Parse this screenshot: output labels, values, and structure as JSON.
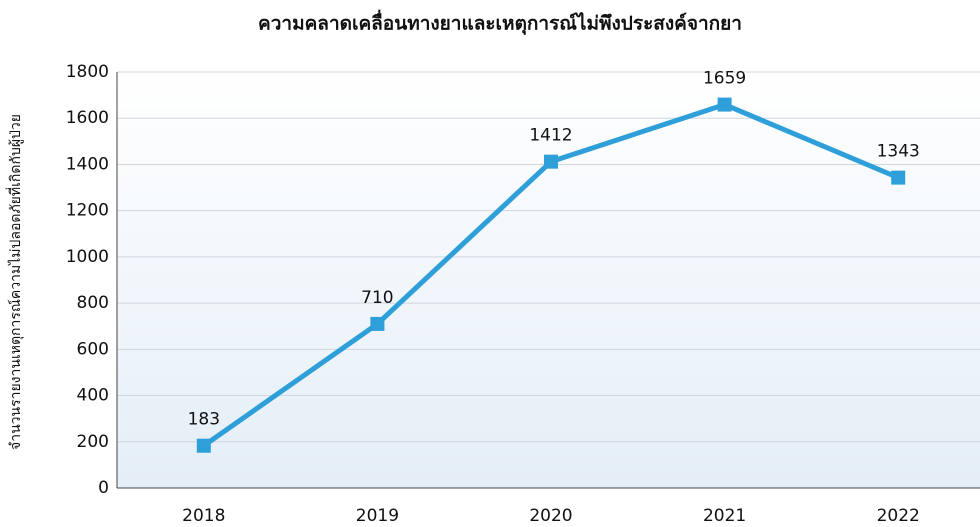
{
  "chart_data": {
    "type": "line",
    "title": "ความคลาดเคลื่อนทางยาและเหตุการณ์ไม่พึงประสงค์จากยา",
    "y_label": "จำนวนรายงานเหตุการณ์ความไม่ปลอดภัยที่เกิดกับผู้ป่วย",
    "categories": [
      "2018",
      "2019",
      "2020",
      "2021",
      "2022"
    ],
    "values": [
      183,
      710,
      1412,
      1659,
      1343
    ],
    "color": "#2e9fd8",
    "ylim": [
      0,
      1800
    ],
    "yticks": [
      0,
      200,
      400,
      600,
      800,
      1000,
      1200,
      1400,
      1600,
      1800
    ],
    "grid": true
  }
}
